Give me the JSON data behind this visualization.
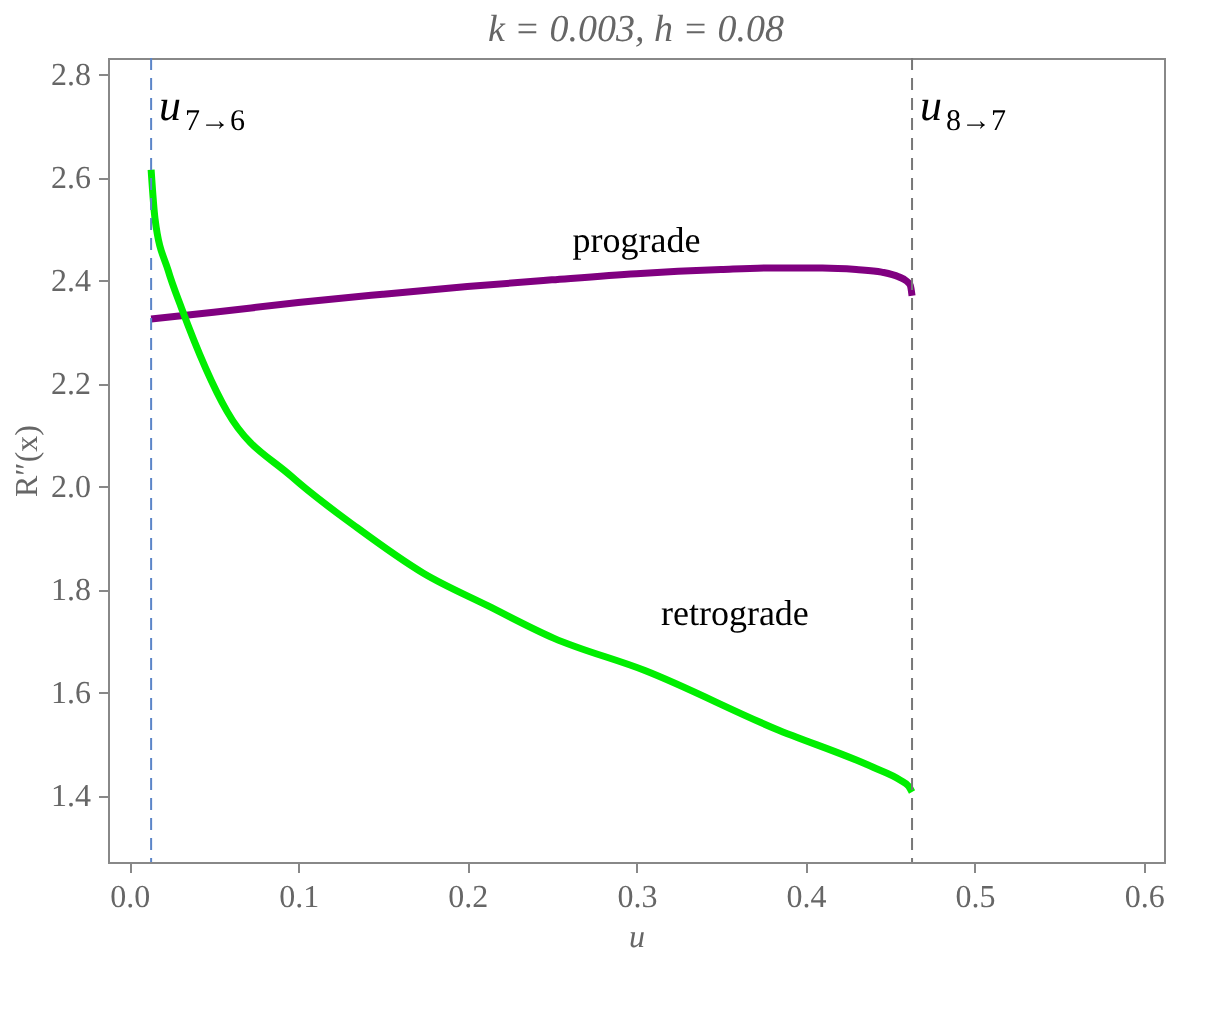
{
  "chart_data": {
    "type": "line",
    "title": "k = 0.003, h = 0.08",
    "xlabel": "u",
    "ylabel": "R″(x)",
    "x": [
      0.013,
      0.05,
      0.1,
      0.15,
      0.2,
      0.25,
      0.3,
      0.35,
      0.38,
      0.41,
      0.43,
      0.445,
      0.455,
      0.46,
      0.462,
      0.463
    ],
    "series": [
      {
        "name": "prograde",
        "color": "#800080",
        "values": [
          2.325,
          2.338,
          2.357,
          2.373,
          2.388,
          2.401,
          2.413,
          2.421,
          2.424,
          2.424,
          2.421,
          2.416,
          2.407,
          2.398,
          2.39,
          2.37
        ]
      },
      {
        "name": "retrograde",
        "color": "#00ee00",
        "x": [
          0.013,
          0.0153,
          0.023,
          0.031,
          0.058,
          0.096,
          0.135,
          0.174,
          0.212,
          0.251,
          0.305,
          0.382,
          0.44,
          0.456,
          0.461,
          0.463
        ],
        "values": [
          2.615,
          2.52,
          2.42,
          2.346,
          2.145,
          2.019,
          1.919,
          1.831,
          1.768,
          1.705,
          1.642,
          1.529,
          1.454,
          1.429,
          1.417,
          1.406
        ]
      }
    ],
    "ref_lines": [
      {
        "axis": "x",
        "value": 0.013,
        "label": "u$_{7→6}$",
        "color": "#5b85c8",
        "line_style": "dashed"
      },
      {
        "axis": "x",
        "value": 0.463,
        "label": "u$_{8→7}$",
        "color": "#777777",
        "line_style": "dashed"
      }
    ],
    "xlim": [
      -0.0125,
      0.612
    ],
    "ylim": [
      1.27,
      2.832
    ],
    "xticks": [
      {
        "value": 0,
        "label": "0.0"
      },
      0.1,
      0.2,
      0.3,
      0.4,
      0.5,
      0.6
    ],
    "yticks": [
      1.4,
      1.6,
      1.8,
      {
        "value": 2,
        "label": "2.0"
      },
      2.2,
      2.4,
      2.6,
      2.8
    ],
    "grid": false,
    "marker": "none",
    "line_style": "solid"
  }
}
